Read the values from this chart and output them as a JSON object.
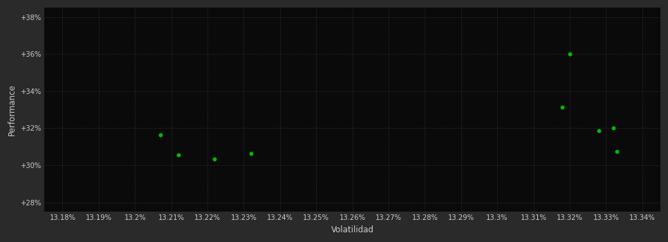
{
  "background_color": "#2a2a2a",
  "plot_bg_color": "#0a0a0a",
  "grid_color": "#3a3a3a",
  "text_color": "#cccccc",
  "point_color": "#00bb00",
  "xlabel": "Volatilidad",
  "ylabel": "Performance",
  "xlim": [
    13.175,
    13.345
  ],
  "ylim": [
    27.5,
    38.5
  ],
  "xticks": [
    13.18,
    13.19,
    13.2,
    13.21,
    13.22,
    13.23,
    13.24,
    13.25,
    13.26,
    13.27,
    13.28,
    13.29,
    13.3,
    13.31,
    13.32,
    13.33,
    13.34
  ],
  "xtick_labels": [
    "13.18%",
    "13.19%",
    "13.2%",
    "13.21%",
    "13.22%",
    "13.23%",
    "13.24%",
    "13.25%",
    "13.26%",
    "13.27%",
    "13.28%",
    "13.29%",
    "13.3%",
    "13.31%",
    "13.32%",
    "13.33%",
    "13.34%"
  ],
  "yticks": [
    28,
    30,
    32,
    34,
    36,
    38
  ],
  "ytick_labels": [
    "+28%",
    "+30%",
    "+32%",
    "+34%",
    "+36%",
    "+38%"
  ],
  "scatter_x": [
    13.207,
    13.212,
    13.222,
    13.232,
    13.318,
    13.32,
    13.328,
    13.332,
    13.333
  ],
  "scatter_y": [
    31.65,
    30.55,
    30.35,
    30.65,
    33.15,
    36.0,
    31.85,
    32.0,
    30.75
  ],
  "point_size": 18,
  "grid_linestyle": ":",
  "grid_linewidth": 0.6,
  "tick_fontsize": 7.2,
  "label_fontsize": 8.5,
  "ylabel_fontsize": 8.5
}
